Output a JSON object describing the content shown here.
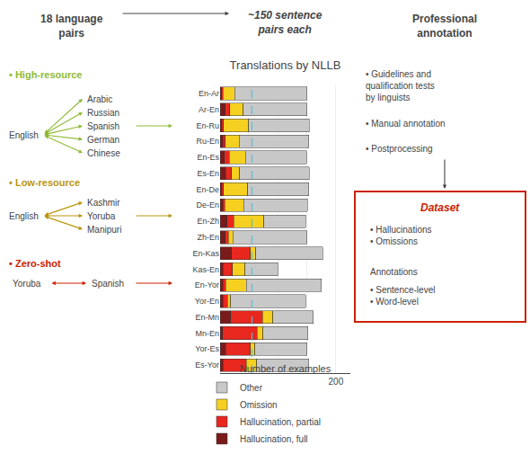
{
  "chart_data": {
    "type": "bar",
    "orientation": "horizontal",
    "stacked": true,
    "title": "Translations by NLLB",
    "x_label": "Number of examples",
    "categories": [
      "En-Ar",
      "Ar-En",
      "En-Ru",
      "Ru-En",
      "En-Es",
      "Es-En",
      "En-De",
      "De-En",
      "En-Zh",
      "Zh-En",
      "En-Kas",
      "Kas-En",
      "En-Yor",
      "Yor-En",
      "En-Mn",
      "Mn-En",
      "Yor-Es",
      "Es-Yor"
    ],
    "series": [
      {
        "name": "Hallucination, full",
        "color": "#7b1a1a",
        "values": [
          3,
          9,
          3,
          5,
          7,
          10,
          3,
          5,
          12,
          9,
          20,
          5,
          5,
          5,
          18,
          4,
          10,
          5
        ]
      },
      {
        "name": "Hallucination, partial",
        "color": "#e8271e",
        "values": [
          2,
          8,
          3,
          4,
          9,
          10,
          3,
          3,
          12,
          5,
          32,
          16,
          5,
          8,
          55,
          60,
          42,
          40
        ]
      },
      {
        "name": "Omission",
        "color": "#f5d020",
        "values": [
          20,
          23,
          43,
          24,
          28,
          14,
          42,
          33,
          52,
          8,
          10,
          22,
          35,
          5,
          18,
          10,
          8,
          18
        ]
      },
      {
        "name": "Other",
        "color": "#c8c8c8",
        "values": [
          125,
          110,
          105,
          120,
          105,
          120,
          105,
          110,
          72,
          128,
          115,
          57,
          130,
          130,
          70,
          78,
          90,
          90
        ]
      }
    ],
    "xlim": [
      0,
      225
    ],
    "xticks": [
      0,
      50,
      100,
      150,
      200
    ],
    "grid": true,
    "legend": "bottom",
    "reference_line": {
      "x": 55,
      "color": "#5bbcd6",
      "line_style": "dashed"
    },
    "annotations": [
      {
        "text": "18 language\npairs"
      },
      {
        "text": "• High-resource",
        "color": "#8fba35"
      },
      {
        "text": "English"
      },
      {
        "text": "Arabic"
      },
      {
        "text": "Russian"
      },
      {
        "text": "Spanish"
      },
      {
        "text": "German"
      },
      {
        "text": "Chinese"
      },
      {
        "text": "• Low-resource",
        "color": "#b8960c"
      },
      {
        "text": "English"
      },
      {
        "text": "Kashmir"
      },
      {
        "text": "Yoruba"
      },
      {
        "text": "Manipuri"
      },
      {
        "text": "• Zero-shot",
        "color": "#cc2200"
      },
      {
        "text": "Yoruba"
      },
      {
        "text": "Spanish"
      },
      {
        "text": "Professional\nannotation"
      },
      {
        "text": "• Guidelines and\nqualification tests\nby linguists"
      },
      {
        "text": "• Manual annotation"
      },
      {
        "text": "• Postprocessing"
      },
      {
        "text": "~150 sentence\npairs each"
      },
      {
        "text": "Dataset",
        "color": "#cc2200"
      },
      {
        "text": "• Hallucinations\n• Omissions"
      },
      {
        "text": "Annotations"
      },
      {
        "text": "• Sentence-level\n• Word-level"
      }
    ]
  }
}
